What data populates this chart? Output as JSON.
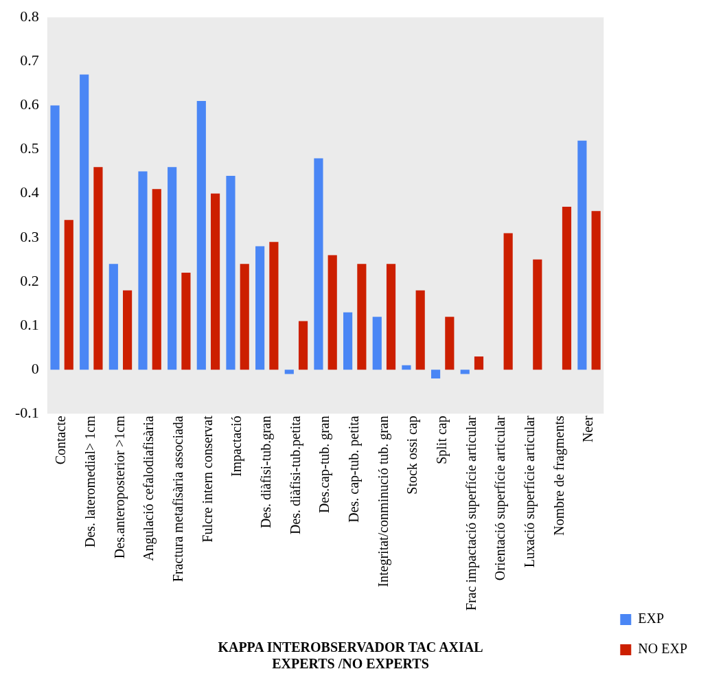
{
  "chart_data": {
    "type": "bar",
    "title": "KAPPA INTEROBSERVADOR TAC AXIAL",
    "subtitle": "EXPERTS /NO EXPERTS",
    "categories": [
      "Contacte",
      "Des. lateromedial> 1cm",
      "Des.anteroposterior >1cm",
      "Angulació cefalodiafisària",
      "Fractura metafisària associada",
      "Fulcre intern conservat",
      "Impactació",
      "Des. diàfisi-tub.gran",
      "Des. diàfisi-tub.petita",
      "Des.cap-tub. gran",
      "Des. cap-tub. petita",
      "Integritat/conminució tub. gran",
      "Stock ossi cap",
      "Split cap",
      "Frac impactació superfície articular",
      "Orientació superfície articular",
      "Luxació superfície articular",
      "Nombre de fragments",
      "Neer"
    ],
    "series": [
      {
        "name": "EXP",
        "color": "#4a86f5",
        "values": [
          0.6,
          0.67,
          0.24,
          0.45,
          0.46,
          0.61,
          0.44,
          0.28,
          -0.01,
          0.48,
          0.13,
          0.12,
          0.01,
          -0.02,
          -0.01,
          0,
          0,
          0,
          0.52
        ]
      },
      {
        "name": "NO EXP",
        "color": "#cc1f00",
        "values": [
          0.34,
          0.46,
          0.18,
          0.41,
          0.22,
          0.4,
          0.24,
          0.29,
          0.11,
          0.26,
          0.24,
          0.24,
          0.18,
          0.12,
          0.03,
          0.31,
          0.25,
          0.37,
          0.36
        ]
      }
    ],
    "ylim": [
      -0.1,
      0.8
    ],
    "yticks": [
      -0.1,
      0,
      0.1,
      0.2,
      0.3,
      0.4,
      0.5,
      0.6,
      0.7,
      0.8
    ],
    "grid": false,
    "legend": "right"
  }
}
